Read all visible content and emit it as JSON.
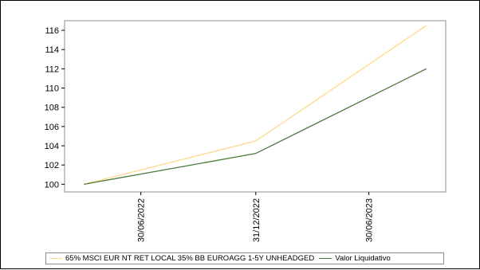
{
  "chart_data": {
    "type": "line",
    "x": [
      "2022-03-31",
      "2022-12-31",
      "2023-09-30"
    ],
    "x_ticks": [
      "30/06/2022",
      "31/12/2022",
      "30/06/2023"
    ],
    "x_tick_dates": [
      "2022-06-30",
      "2022-12-31",
      "2023-06-30"
    ],
    "xlim": [
      "2022-02-28",
      "2023-10-31"
    ],
    "ylim": [
      99.2,
      117.0
    ],
    "y_ticks": [
      "100",
      "102",
      "104",
      "106",
      "108",
      "110",
      "112",
      "114",
      "116"
    ],
    "grid": false,
    "legend_position": "bottom",
    "series": [
      {
        "name": "65% MSCI EUR NT RET LOCAL 35% BB EUROAGG 1-5Y UNHEADGED",
        "color": "#ffd98a",
        "values": [
          100.0,
          104.5,
          116.5
        ]
      },
      {
        "name": "Valor Liquidativo",
        "color": "#4a7a3c",
        "values": [
          100.0,
          103.2,
          112.0
        ]
      }
    ],
    "title": "",
    "xlabel": "",
    "ylabel": ""
  }
}
